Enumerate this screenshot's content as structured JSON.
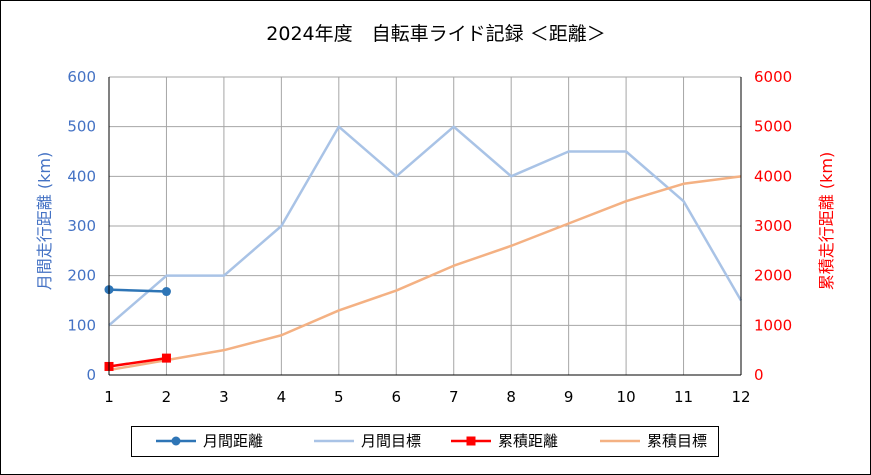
{
  "chart_data": {
    "type": "line",
    "title": "2024年度　自転車ライド記録 ＜距離＞",
    "xlabel": "",
    "ylabel": "月間走行距離 (km)",
    "y2label": "累積走行距離 (km)",
    "x": [
      1,
      2,
      3,
      4,
      5,
      6,
      7,
      8,
      9,
      10,
      11,
      12
    ],
    "x_ticks": [
      "1",
      "2",
      "3",
      "4",
      "5",
      "6",
      "7",
      "8",
      "9",
      "10",
      "11",
      "12"
    ],
    "xlim": [
      1,
      12
    ],
    "ylim": [
      0,
      600
    ],
    "y2lim": [
      0,
      6000
    ],
    "y_ticks": [
      "0",
      "100",
      "200",
      "300",
      "400",
      "500",
      "600"
    ],
    "y2_ticks": [
      "0",
      "1000",
      "2000",
      "3000",
      "4000",
      "5000",
      "6000"
    ],
    "grid": true,
    "legend_position": "bottom",
    "series": [
      {
        "name": "月間距離",
        "axis": "left",
        "color": "#2E75B6",
        "marker": "circle",
        "x": [
          1,
          2
        ],
        "values": [
          172,
          168
        ]
      },
      {
        "name": "月間目標",
        "axis": "left",
        "color": "#A9C3E6",
        "marker": "none",
        "x": [
          1,
          2,
          3,
          4,
          5,
          6,
          7,
          8,
          9,
          10,
          11,
          12
        ],
        "values": [
          100,
          200,
          200,
          300,
          500,
          400,
          500,
          400,
          450,
          450,
          350,
          150
        ]
      },
      {
        "name": "累積距離",
        "axis": "right",
        "color": "#FF0000",
        "marker": "square",
        "x": [
          1,
          2
        ],
        "values": [
          172,
          340
        ]
      },
      {
        "name": "累積目標",
        "axis": "right",
        "color": "#F4B183",
        "marker": "none",
        "x": [
          1,
          2,
          3,
          4,
          5,
          6,
          7,
          8,
          9,
          10,
          11,
          12
        ],
        "values": [
          100,
          300,
          500,
          800,
          1300,
          1700,
          2200,
          2600,
          3050,
          3500,
          3850,
          4000
        ]
      }
    ],
    "colors": {
      "left_axis": "#4472C4",
      "right_axis": "#FF0000",
      "grid": "#A6A6A6"
    }
  }
}
